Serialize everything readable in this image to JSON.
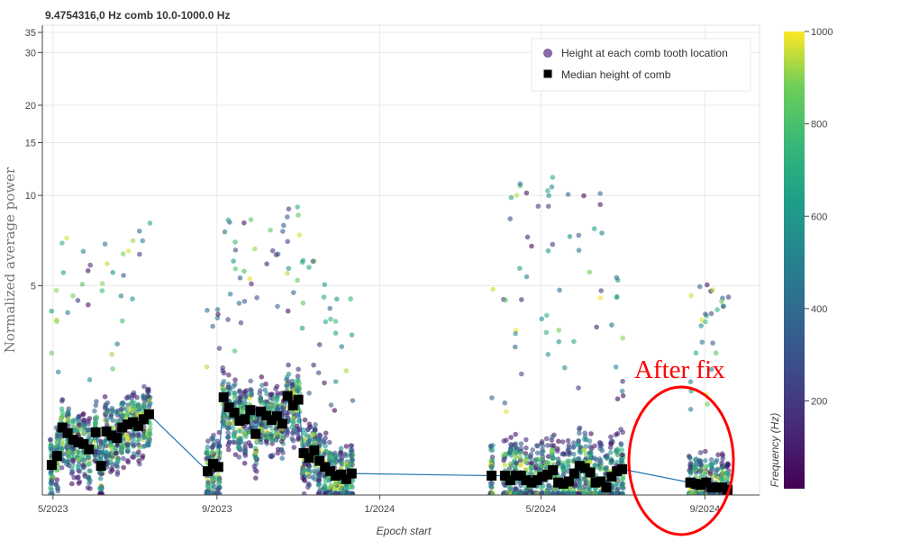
{
  "chart_data": {
    "type": "scatter",
    "title": "9.4754316,0 Hz comb 10.0-1000.0 Hz",
    "xlabel": "Epoch start",
    "ylabel": "Normalized average power",
    "x_ticks": [
      "5/2023",
      "9/2023",
      "1/2024",
      "5/2024",
      "9/2024"
    ],
    "x_tick_dates": [
      "2023-05-01",
      "2023-09-01",
      "2024-01-01",
      "2024-05-01",
      "2024-09-01"
    ],
    "xlim": [
      "2023-04-23",
      "2024-10-12"
    ],
    "y_scale": "log",
    "ylim": [
      1,
      37
    ],
    "y_ticks": [
      5,
      10,
      15,
      20,
      30,
      35
    ],
    "grid": true,
    "legend_position": "top-right",
    "legend": [
      {
        "label": "Height at each comb tooth location",
        "marker": "circle",
        "color": "#8e6ba8"
      },
      {
        "label": "Median height of comb",
        "marker": "square",
        "color": "#000000"
      }
    ],
    "colorbar": {
      "label": "Frequency (Hz)",
      "min": 10,
      "max": 1000,
      "ticks": [
        200,
        400,
        600,
        800,
        1000
      ],
      "colormap": "viridis"
    },
    "median_line_color": "#1f77b4",
    "median_series": {
      "name": "Median height of comb",
      "x": [
        "2023-04-30",
        "2023-05-04",
        "2023-05-08",
        "2023-05-12",
        "2023-05-16",
        "2023-05-20",
        "2023-05-24",
        "2023-05-28",
        "2023-06-02",
        "2023-06-06",
        "2023-06-10",
        "2023-06-14",
        "2023-06-18",
        "2023-06-22",
        "2023-06-26",
        "2023-06-30",
        "2023-07-04",
        "2023-07-08",
        "2023-07-12",
        "2023-08-25",
        "2023-08-29",
        "2023-09-02",
        "2023-09-06",
        "2023-09-10",
        "2023-09-14",
        "2023-09-18",
        "2023-09-22",
        "2023-09-26",
        "2023-09-30",
        "2023-10-04",
        "2023-10-08",
        "2023-10-12",
        "2023-10-16",
        "2023-10-20",
        "2023-10-24",
        "2023-10-28",
        "2023-11-01",
        "2023-11-05",
        "2023-11-09",
        "2023-11-13",
        "2023-11-17",
        "2023-11-21",
        "2023-11-25",
        "2023-11-29",
        "2023-12-03",
        "2023-12-07",
        "2023-12-11",
        "2024-03-25",
        "2024-04-04",
        "2024-04-08",
        "2024-04-12",
        "2024-04-16",
        "2024-04-20",
        "2024-04-24",
        "2024-04-28",
        "2024-05-02",
        "2024-05-06",
        "2024-05-10",
        "2024-05-14",
        "2024-05-18",
        "2024-05-22",
        "2024-05-26",
        "2024-05-30",
        "2024-06-03",
        "2024-06-07",
        "2024-06-11",
        "2024-06-15",
        "2024-06-19",
        "2024-06-23",
        "2024-06-27",
        "2024-07-01",
        "2024-08-21",
        "2024-08-25",
        "2024-08-29",
        "2024-09-02",
        "2024-09-06",
        "2024-09-10",
        "2024-09-14",
        "2024-09-18"
      ],
      "y": [
        1.26,
        1.35,
        1.68,
        1.61,
        1.53,
        1.5,
        1.48,
        1.42,
        1.62,
        1.25,
        1.63,
        1.58,
        1.55,
        1.68,
        1.72,
        1.75,
        1.7,
        1.79,
        1.86,
        1.2,
        1.27,
        1.24,
        2.12,
        1.96,
        1.88,
        1.77,
        1.79,
        1.92,
        1.6,
        1.9,
        1.84,
        1.78,
        1.83,
        1.73,
        2.14,
        1.99,
        2.08,
        1.38,
        1.33,
        1.41,
        1.3,
        1.24,
        1.2,
        1.16,
        1.17,
        1.13,
        1.18,
        1.16,
        1.16,
        1.12,
        1.16,
        1.16,
        1.12,
        1.1,
        1.12,
        1.15,
        1.17,
        1.21,
        1.1,
        1.09,
        1.11,
        1.18,
        1.25,
        1.23,
        1.19,
        1.1,
        1.11,
        1.06,
        1.15,
        1.2,
        1.22,
        1.1,
        1.09,
        1.08,
        1.1,
        1.06,
        1.06,
        1.06,
        1.04
      ]
    },
    "scatter_summary": "Per-epoch comb tooth heights colored by frequency; visible epochs between 5/2023 and 9/2024 with outliers up to about 16"
  },
  "annotation": {
    "text": "After fix",
    "color": "#ff0000"
  }
}
